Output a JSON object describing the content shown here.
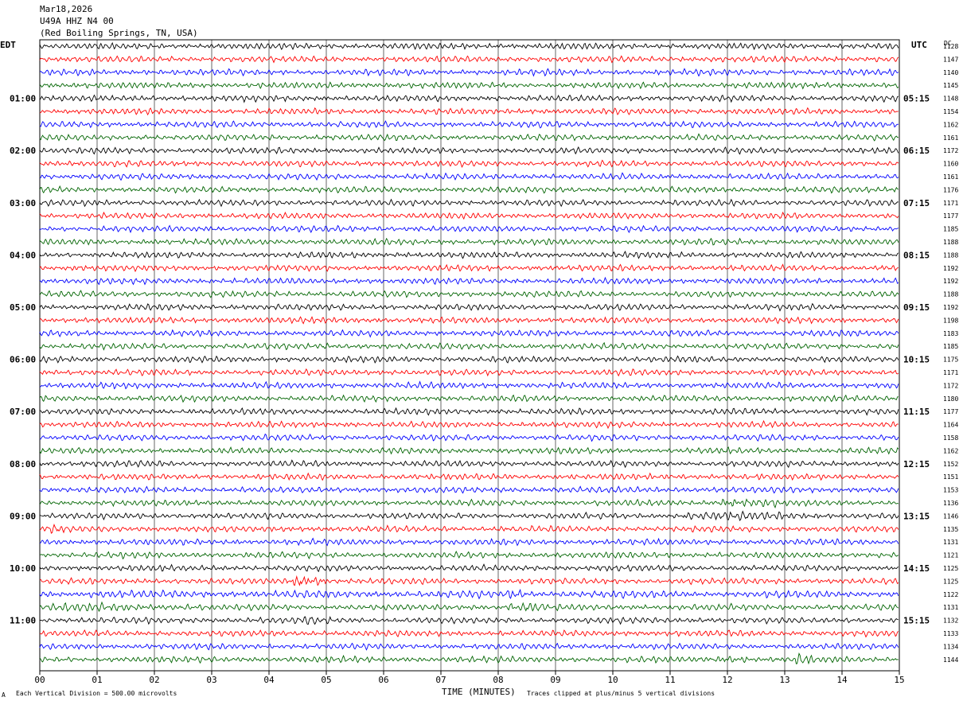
{
  "header": {
    "date": "Mar18,2026",
    "station": "U49A HHZ N4 00",
    "location": "(Red Boiling Springs, TN, USA)"
  },
  "left_tz": "EDT",
  "right_tz": "UTC",
  "dc_label": "DC",
  "footer": {
    "scale_note": "Each Vertical Division =  500.00 microvolts",
    "x_title": "TIME (MINUTES)",
    "clip_note": "Traces clipped at plus/minus 5 vertical divisions",
    "corner_mark": "A"
  },
  "colors": {
    "cycle": [
      "#000000",
      "#ff0000",
      "#0000ff",
      "#006400"
    ],
    "grid": "#000000"
  },
  "chart_data": {
    "type": "line",
    "x": [
      0,
      15
    ],
    "xlabel": "TIME (MINUTES)",
    "x_ticks": [
      "00",
      "01",
      "02",
      "03",
      "04",
      "05",
      "06",
      "07",
      "08",
      "09",
      "10",
      "11",
      "12",
      "13",
      "14",
      "15"
    ],
    "line_count": 48,
    "line_interval_minutes": 15,
    "left_labels": [
      {
        "line": 4,
        "text": "01:00"
      },
      {
        "line": 8,
        "text": "02:00"
      },
      {
        "line": 12,
        "text": "03:00"
      },
      {
        "line": 16,
        "text": "04:00"
      },
      {
        "line": 20,
        "text": "05:00"
      },
      {
        "line": 24,
        "text": "06:00"
      },
      {
        "line": 28,
        "text": "07:00"
      },
      {
        "line": 32,
        "text": "08:00"
      },
      {
        "line": 36,
        "text": "09:00"
      },
      {
        "line": 40,
        "text": "10:00"
      },
      {
        "line": 44,
        "text": "11:00"
      }
    ],
    "right_labels": [
      {
        "line": 4,
        "text": "05:15"
      },
      {
        "line": 8,
        "text": "06:15"
      },
      {
        "line": 12,
        "text": "07:15"
      },
      {
        "line": 16,
        "text": "08:15"
      },
      {
        "line": 20,
        "text": "09:15"
      },
      {
        "line": 24,
        "text": "10:15"
      },
      {
        "line": 28,
        "text": "11:15"
      },
      {
        "line": 32,
        "text": "12:15"
      },
      {
        "line": 36,
        "text": "13:15"
      },
      {
        "line": 40,
        "text": "14:15"
      },
      {
        "line": 44,
        "text": "15:15"
      }
    ],
    "dc_values": [
      "1128",
      "1147",
      "1140",
      "1145",
      "1148",
      "1154",
      "1162",
      "1161",
      "1172",
      "1160",
      "1161",
      "1176",
      "1171",
      "1177",
      "1185",
      "1188",
      "1188",
      "1192",
      "1192",
      "1188",
      "1192",
      "1198",
      "1183",
      "1185",
      "1175",
      "1171",
      "1172",
      "1180",
      "1177",
      "1164",
      "1158",
      "1162",
      "1152",
      "1151",
      "1153",
      "1136",
      "1146",
      "1135",
      "1131",
      "1121",
      "1125",
      "1125",
      "1122",
      "1131",
      "1132",
      "1133",
      "1134",
      "1144"
    ],
    "events": [
      {
        "line": 35,
        "minute": 11.9,
        "duration": 1.0,
        "strength": 2.0
      },
      {
        "line": 36,
        "minute": 11.2,
        "duration": 2.6,
        "strength": 1.6
      },
      {
        "line": 37,
        "minute": 0.1,
        "duration": 0.4,
        "strength": 1.5
      },
      {
        "line": 41,
        "minute": 4.4,
        "duration": 0.6,
        "strength": 2.5
      },
      {
        "line": 42,
        "minute": 0.0,
        "duration": 15.0,
        "strength": 1.3
      },
      {
        "line": 42,
        "minute": 8.15,
        "duration": 0.4,
        "strength": 2.0
      },
      {
        "line": 43,
        "minute": 8.2,
        "duration": 0.6,
        "strength": 2.4
      },
      {
        "line": 43,
        "minute": 0.2,
        "duration": 2.4,
        "strength": 1.5
      },
      {
        "line": 44,
        "minute": 4.6,
        "duration": 0.5,
        "strength": 1.6
      },
      {
        "line": 47,
        "minute": 11.8,
        "duration": 0.6,
        "strength": 1.8
      },
      {
        "line": 47,
        "minute": 13.2,
        "duration": 0.3,
        "strength": 2.2
      }
    ]
  }
}
